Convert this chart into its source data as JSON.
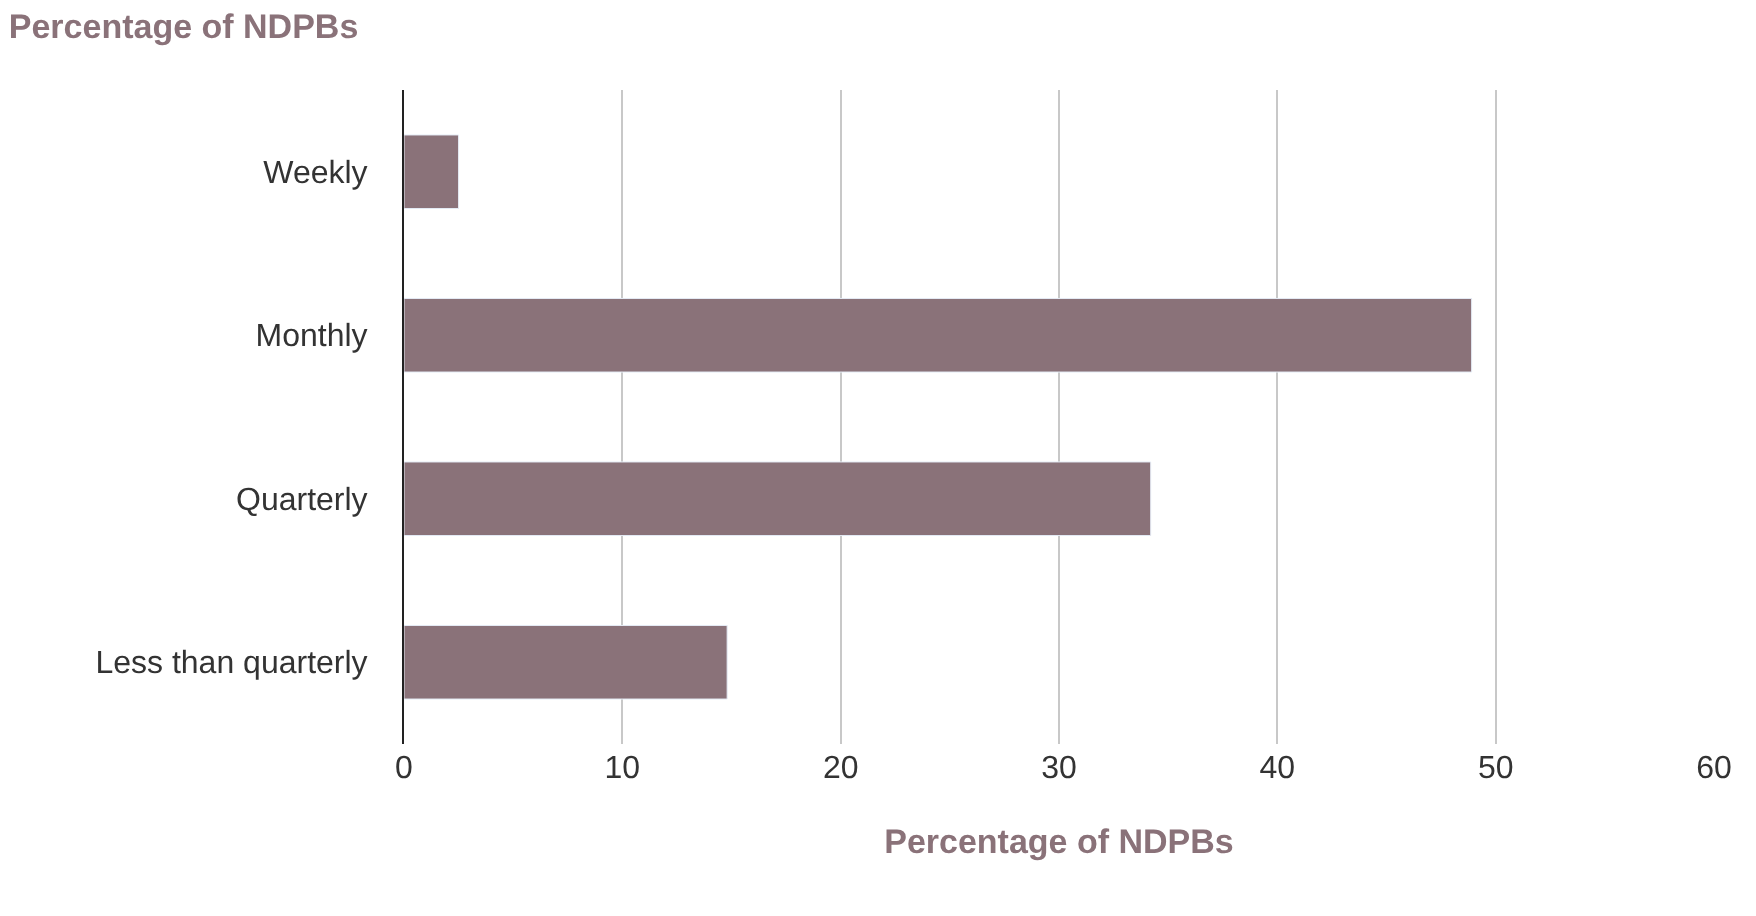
{
  "chart_data": {
    "type": "bar",
    "orientation": "horizontal",
    "title": "Percentage of NDPBs",
    "xlabel": "Percentage of NDPBs",
    "categories": [
      "Weekly",
      "Monthly",
      "Quarterly",
      "Less than quarterly"
    ],
    "values": [
      2.5,
      48.9,
      34.2,
      14.8
    ],
    "color": "#8a7279",
    "xlim": [
      0,
      60
    ],
    "xticks": [
      0,
      10,
      20,
      30,
      40,
      50,
      60
    ],
    "grid": "x"
  }
}
